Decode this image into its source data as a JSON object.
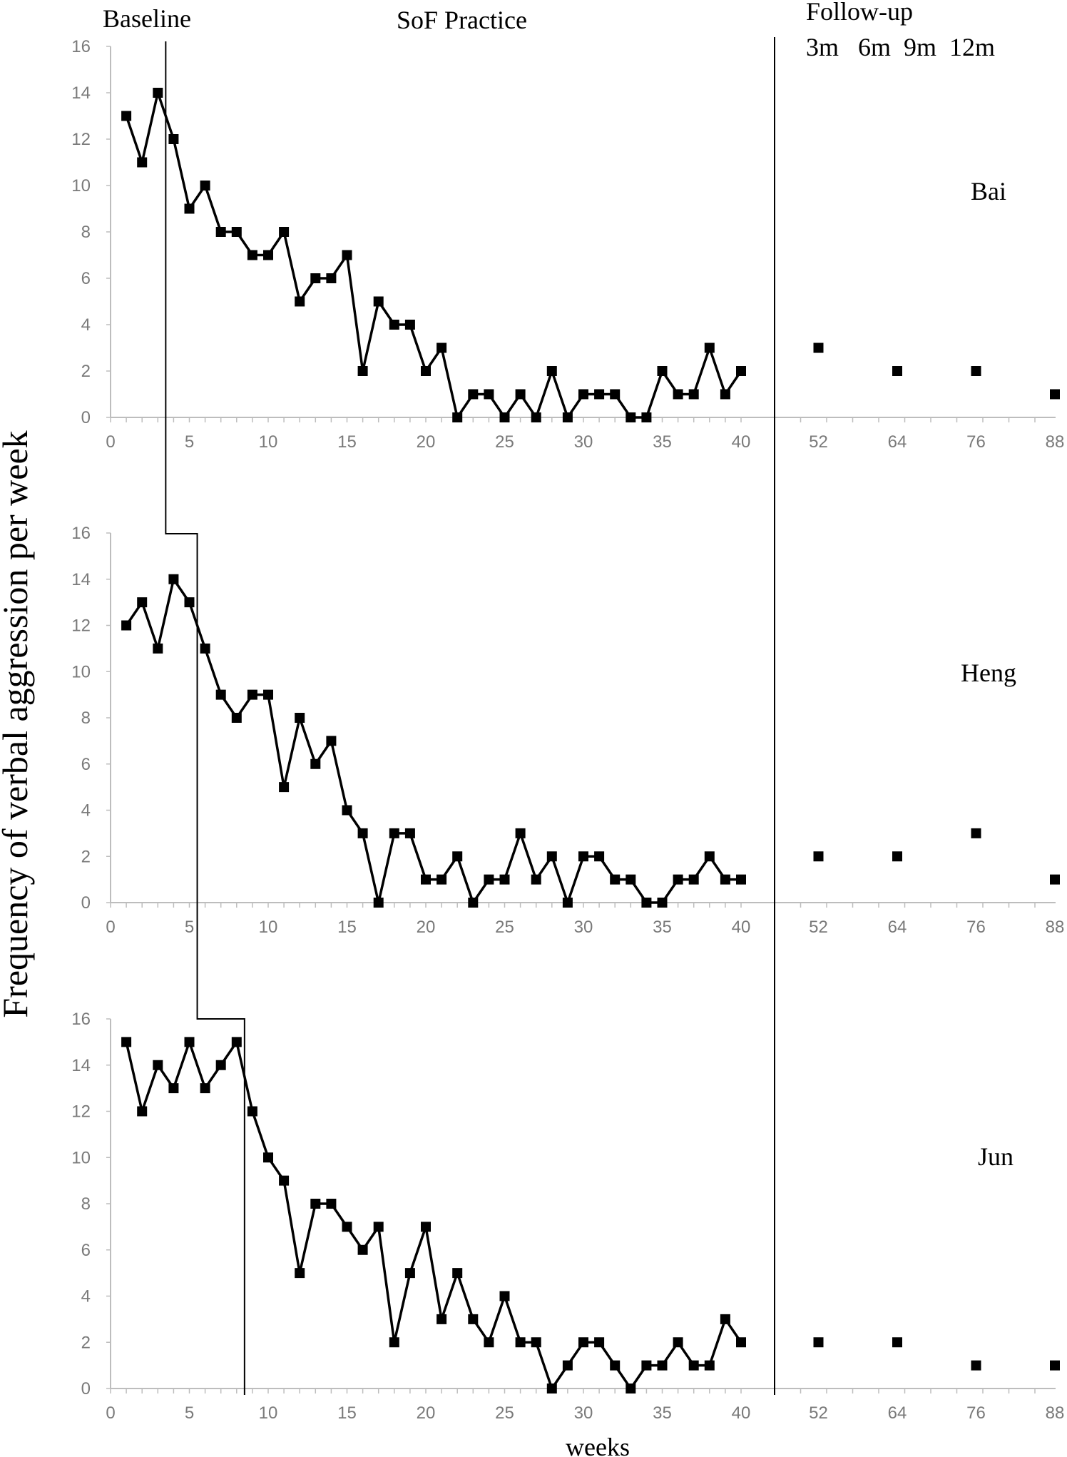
{
  "labels": {
    "phase_baseline": "Baseline",
    "phase_practice": "SoF Practice",
    "phase_followup": "Follow-up",
    "followup_periods": "3m   6m  9m  12m",
    "ylabel": "Frequency of verbal aggression per week",
    "xlabel": "weeks"
  },
  "chart_data": [
    {
      "type": "line",
      "name": "Bai",
      "ylim": [
        0,
        16
      ],
      "yticks": [
        0,
        2,
        4,
        6,
        8,
        10,
        12,
        14,
        16
      ],
      "xticks": [
        0,
        5,
        10,
        15,
        20,
        25,
        30,
        35,
        40,
        52,
        64,
        76,
        88
      ],
      "weeks": [
        1,
        2,
        3,
        4,
        5,
        6,
        7,
        8,
        9,
        10,
        11,
        12,
        13,
        14,
        15,
        16,
        17,
        18,
        19,
        20,
        21,
        22,
        23,
        24,
        25,
        26,
        27,
        28,
        29,
        30,
        31,
        32,
        33,
        34,
        35,
        36,
        37,
        38,
        39,
        40
      ],
      "values": [
        13,
        11,
        14,
        12,
        9,
        10,
        8,
        8,
        7,
        7,
        8,
        5,
        6,
        6,
        7,
        2,
        5,
        4,
        4,
        2,
        3,
        0,
        1,
        1,
        0,
        1,
        0,
        2,
        0,
        1,
        1,
        1,
        0,
        0,
        2,
        1,
        1,
        3,
        1,
        2
      ],
      "baseline_weeks": 3,
      "followup": {
        "weeks": [
          52,
          64,
          76,
          88
        ],
        "values": [
          3,
          2,
          2,
          1
        ]
      }
    },
    {
      "type": "line",
      "name": "Heng",
      "ylim": [
        0,
        16
      ],
      "yticks": [
        0,
        2,
        4,
        6,
        8,
        10,
        12,
        14,
        16
      ],
      "xticks": [
        0,
        5,
        10,
        15,
        20,
        25,
        30,
        35,
        40,
        52,
        64,
        76,
        88
      ],
      "weeks": [
        1,
        2,
        3,
        4,
        5,
        6,
        7,
        8,
        9,
        10,
        11,
        12,
        13,
        14,
        15,
        16,
        17,
        18,
        19,
        20,
        21,
        22,
        23,
        24,
        25,
        26,
        27,
        28,
        29,
        30,
        31,
        32,
        33,
        34,
        35,
        36,
        37,
        38,
        39,
        40
      ],
      "values": [
        12,
        13,
        11,
        14,
        13,
        11,
        9,
        8,
        9,
        9,
        5,
        8,
        6,
        7,
        4,
        3,
        0,
        3,
        3,
        1,
        1,
        2,
        0,
        1,
        1,
        3,
        1,
        2,
        0,
        2,
        2,
        1,
        1,
        0,
        0,
        1,
        1,
        2,
        1,
        1
      ],
      "baseline_weeks": 5,
      "followup": {
        "weeks": [
          52,
          64,
          76,
          88
        ],
        "values": [
          2,
          2,
          3,
          1
        ]
      }
    },
    {
      "type": "line",
      "name": "Jun",
      "ylim": [
        0,
        16
      ],
      "yticks": [
        0,
        2,
        4,
        6,
        8,
        10,
        12,
        14,
        16
      ],
      "xticks": [
        0,
        5,
        10,
        15,
        20,
        25,
        30,
        35,
        40,
        52,
        64,
        76,
        88
      ],
      "weeks": [
        1,
        2,
        3,
        4,
        5,
        6,
        7,
        8,
        9,
        10,
        11,
        12,
        13,
        14,
        15,
        16,
        17,
        18,
        19,
        20,
        21,
        22,
        23,
        24,
        25,
        26,
        27,
        28,
        29,
        30,
        31,
        32,
        33,
        34,
        35,
        36,
        37,
        38,
        39,
        40
      ],
      "values": [
        15,
        12,
        14,
        13,
        15,
        13,
        14,
        15,
        12,
        10,
        9,
        5,
        8,
        8,
        7,
        6,
        7,
        2,
        5,
        7,
        3,
        5,
        3,
        2,
        4,
        2,
        2,
        0,
        1,
        2,
        2,
        1,
        0,
        1,
        1,
        2,
        1,
        1,
        3,
        2
      ],
      "baseline_weeks": 8,
      "followup": {
        "weeks": [
          52,
          64,
          76,
          88
        ],
        "values": [
          2,
          2,
          1,
          1
        ]
      }
    }
  ]
}
